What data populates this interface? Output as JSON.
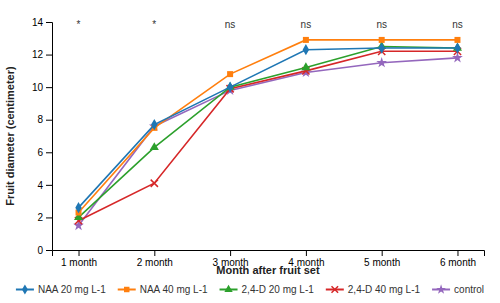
{
  "chart_data": {
    "type": "line",
    "x": [
      1,
      2,
      3,
      4,
      5,
      6
    ],
    "xlim": [
      0.65,
      6.35
    ],
    "xticks": [
      {
        "value": 1,
        "label": "1 month"
      },
      {
        "value": 2,
        "label": "2 month"
      },
      {
        "value": 3,
        "label": "3 month"
      },
      {
        "value": 4,
        "label": "4 month"
      },
      {
        "value": 5,
        "label": "5 month"
      },
      {
        "value": 6,
        "label": "6 month"
      }
    ],
    "ylim": [
      0,
      14
    ],
    "yticks": [
      0,
      2,
      4,
      6,
      8,
      10,
      12,
      14
    ],
    "xlabel": "Month after fruit set",
    "ylabel": "Fruit diameter (centimeter)",
    "grid": false,
    "legend": "bottom",
    "series": [
      {
        "name": "NAA 20 mg L-1",
        "marker": "diamond",
        "values": [
          2.6,
          7.7,
          10.0,
          12.3,
          12.4,
          12.4
        ]
      },
      {
        "name": "NAA 40 mg L-1",
        "marker": "square",
        "values": [
          2.3,
          7.5,
          10.8,
          12.9,
          12.9,
          12.9
        ]
      },
      {
        "name": "2,4-D 20 mg L-1",
        "marker": "triangle",
        "values": [
          2.0,
          6.3,
          10.0,
          11.2,
          12.5,
          12.4
        ]
      },
      {
        "name": "2,4-D 40 mg L-1",
        "marker": "x",
        "values": [
          1.8,
          4.1,
          9.9,
          11.0,
          12.2,
          12.2
        ]
      },
      {
        "name": "control",
        "marker": "star",
        "values": [
          1.5,
          7.6,
          9.8,
          10.9,
          11.5,
          11.8
        ]
      }
    ],
    "annotations": [
      {
        "x": 1,
        "y": 13.65,
        "text": "*"
      },
      {
        "x": 2,
        "y": 13.65,
        "text": "*"
      },
      {
        "x": 3,
        "y": 13.65,
        "text": "ns"
      },
      {
        "x": 4,
        "y": 13.65,
        "text": "ns"
      },
      {
        "x": 5,
        "y": 13.65,
        "text": "ns"
      },
      {
        "x": 6,
        "y": 13.65,
        "text": "ns"
      }
    ]
  }
}
